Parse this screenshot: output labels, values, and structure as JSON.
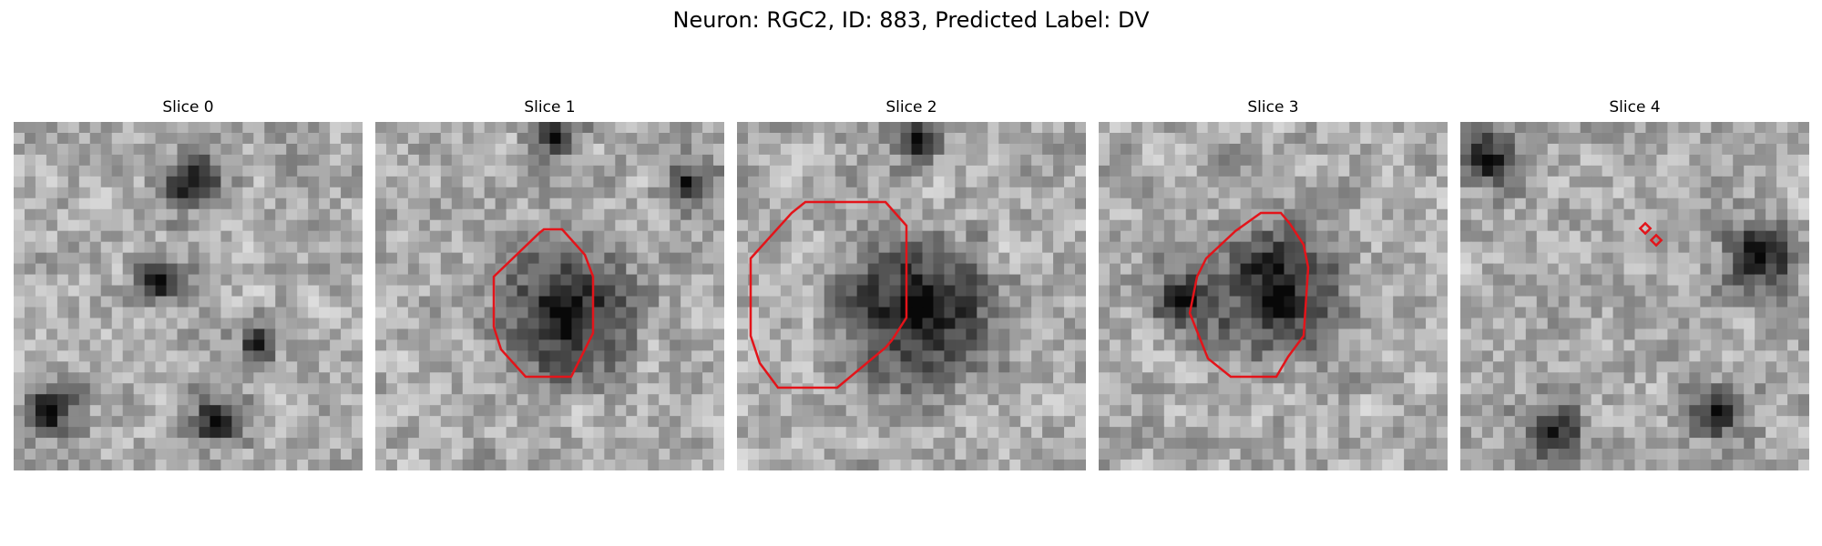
{
  "figure": {
    "title": "Neuron: RGC2, ID: 883, Predicted Label: DV"
  },
  "slices": [
    {
      "title": "Slice 0",
      "has_contour": false,
      "seed": 11
    },
    {
      "title": "Slice 1",
      "has_contour": true,
      "seed": 23
    },
    {
      "title": "Slice 2",
      "has_contour": true,
      "seed": 37
    },
    {
      "title": "Slice 3",
      "has_contour": true,
      "seed": 41
    },
    {
      "title": "Slice 4",
      "has_contour": true,
      "seed": 53
    }
  ],
  "colors": {
    "contour": "#e3141a",
    "background": "#ffffff"
  }
}
